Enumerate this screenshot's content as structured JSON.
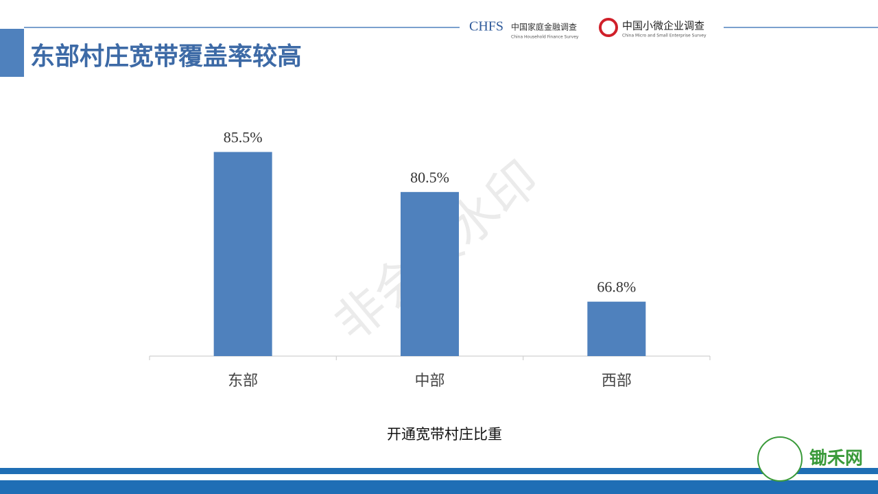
{
  "header": {
    "title": "东部村庄宽带覆盖率较高",
    "logo1_abbr": "CHFS",
    "logo1_name": "中国家庭金融调查",
    "logo1_en": "China Household Finance Survey",
    "logo2_name": "中国小微企业调查",
    "logo2_en": "China Micro and Small Enterprise Survey"
  },
  "watermark": "非会员水印",
  "footer": {
    "brand": "锄禾网"
  },
  "chart_data": {
    "type": "bar",
    "x_label": "开通宽带村庄比重",
    "categories": [
      "东部",
      "中部",
      "西部"
    ],
    "values": [
      85.5,
      80.5,
      66.8
    ],
    "value_labels": [
      "85.5%",
      "80.5%",
      "66.8%"
    ],
    "color": "#4f81bd",
    "ylim": [
      60,
      90
    ]
  }
}
